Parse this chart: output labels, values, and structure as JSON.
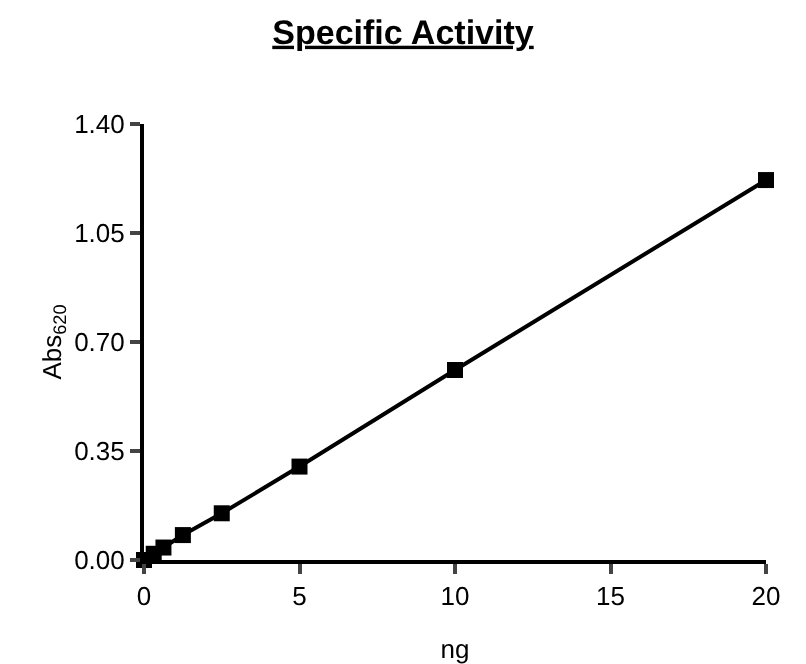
{
  "chart_data": {
    "type": "line",
    "title": "Specific Activity",
    "xlabel": "ng",
    "ylabel": "Abs$_{620}$",
    "x": [
      0,
      0.3125,
      0.625,
      1.25,
      2.5,
      5,
      10,
      20
    ],
    "series": [
      {
        "color": "#000000",
        "values": [
          0,
          0.02,
          0.04,
          0.08,
          0.15,
          0.3,
          0.61,
          1.22
        ]
      }
    ],
    "xlim": [
      0,
      20
    ],
    "xticks": [
      0,
      5,
      10,
      15,
      20
    ],
    "ylim": [
      0,
      1.4
    ],
    "yticks": [
      {
        "value": 0,
        "label": "0.00"
      },
      {
        "value": 0.35,
        "label": "0.35"
      },
      {
        "value": 0.7,
        "label": "0.70"
      },
      {
        "value": 1.05,
        "label": "1.05"
      },
      {
        "value": 1.4,
        "label": "1.40"
      }
    ],
    "grid": false,
    "legend": false,
    "marker": "square",
    "line_style": "solid"
  }
}
